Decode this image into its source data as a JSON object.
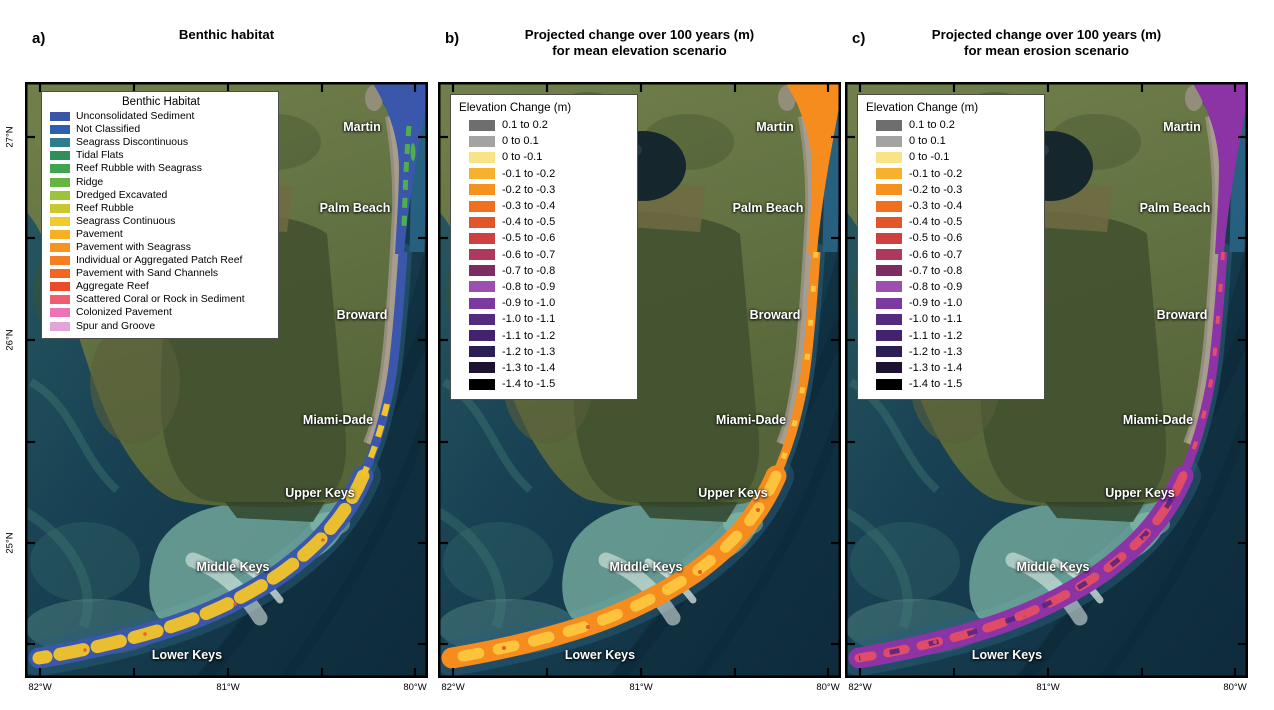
{
  "figure": {
    "description": "Three-panel map figure of South Florida reef tract",
    "panels": [
      {
        "id": "a",
        "letter": "a)",
        "title_line1": "Benthic habitat",
        "title_line2": "",
        "legend": "benthic",
        "strip": {
          "base": "#3b57ab",
          "accent1": "#f2c42a",
          "accent2": "#4fae4e",
          "accent3": "#e8642e"
        }
      },
      {
        "id": "b",
        "letter": "b)",
        "title_line1": "Projected change over 100 years (m)",
        "title_line2": "for mean elevation scenario",
        "legend": "elevation",
        "strip": {
          "base": "#f68c1e",
          "accent1": "#fdc63f",
          "accent2": "#fde29a",
          "accent3": "#e05a2b"
        }
      },
      {
        "id": "c",
        "letter": "c)",
        "title_line1": "Projected change over 100 years (m)",
        "title_line2": "for mean erosion scenario",
        "legend": "elevation",
        "strip": {
          "base": "#8c33a6",
          "accent1": "#e44e63",
          "accent2": "#5a2380",
          "accent3": "#d9455c"
        }
      }
    ]
  },
  "axes": {
    "lon_labels": [
      "82°W",
      "81°W",
      "80°W"
    ],
    "lat_labels": [
      "27°N",
      "26°N",
      "25°N"
    ]
  },
  "regions": [
    "Martin",
    "Palm Beach",
    "Broward",
    "Miami-Dade",
    "Upper Keys",
    "Middle Keys",
    "Lower Keys"
  ],
  "legends": {
    "benthic": {
      "title": "Benthic Habitat",
      "items": [
        {
          "label": "Unconsolidated Sediment",
          "color": "#3b55a6"
        },
        {
          "label": "Not Classified",
          "color": "#2d5fae"
        },
        {
          "label": "Seagrass Discontinuous",
          "color": "#2e7d8c"
        },
        {
          "label": "Tidal Flats",
          "color": "#2f8f5b"
        },
        {
          "label": "Reef Rubble with Seagrass",
          "color": "#3fa34f"
        },
        {
          "label": "Ridge",
          "color": "#67b441"
        },
        {
          "label": "Dredged Excavated",
          "color": "#9cc43a"
        },
        {
          "label": "Reef Rubble",
          "color": "#c9c832"
        },
        {
          "label": "Seagrass Continuous",
          "color": "#f0cb2e"
        },
        {
          "label": "Pavement",
          "color": "#f6b024"
        },
        {
          "label": "Pavement with Seagrass",
          "color": "#f79421"
        },
        {
          "label": "Individual or Aggregated Patch Reef",
          "color": "#f57e20"
        },
        {
          "label": "Pavement with Sand Channels",
          "color": "#f2641f"
        },
        {
          "label": "Aggregate Reef",
          "color": "#ea4b2a"
        },
        {
          "label": "Scattered Coral or Rock in Sediment",
          "color": "#ef5d72"
        },
        {
          "label": "Colonized Pavement",
          "color": "#ee74ba"
        },
        {
          "label": "Spur and Groove",
          "color": "#e3a4d9"
        }
      ]
    },
    "elevation": {
      "title": "Elevation Change (m)",
      "items": [
        {
          "label": "0.1 to 0.2",
          "color": "#6e6e6e"
        },
        {
          "label": "0 to 0.1",
          "color": "#a3a3a3"
        },
        {
          "label": "0 to -0.1",
          "color": "#f7e488"
        },
        {
          "label": "-0.1 to -0.2",
          "color": "#f8b12c"
        },
        {
          "label": "-0.2 to -0.3",
          "color": "#f6901f"
        },
        {
          "label": "-0.3 to -0.4",
          "color": "#f1701f"
        },
        {
          "label": "-0.4 to -0.5",
          "color": "#e2552b"
        },
        {
          "label": "-0.5 to -0.6",
          "color": "#ce4140"
        },
        {
          "label": "-0.6 to -0.7",
          "color": "#ad3a5e"
        },
        {
          "label": "-0.7 to -0.8",
          "color": "#7c2d62"
        },
        {
          "label": "-0.8 to -0.9",
          "color": "#9b4fae"
        },
        {
          "label": "-0.9 to -1.0",
          "color": "#7b3b9e"
        },
        {
          "label": "-1.0 to -1.1",
          "color": "#542a7e"
        },
        {
          "label": "-1.1 to -1.2",
          "color": "#43236f"
        },
        {
          "label": "-1.2 to -1.3",
          "color": "#2d1d55"
        },
        {
          "label": "-1.3 to -1.4",
          "color": "#1f1130"
        },
        {
          "label": "-1.4 to -1.5",
          "color": "#000000"
        }
      ]
    }
  },
  "map_colors": {
    "ocean_deep": "#0e2c3d",
    "ocean_mid": "#174052",
    "ocean_band": "#0b2331",
    "ocean_shelf": "#2f7095",
    "shelf_band": "#2a5e79",
    "gulf": "#2b5c64",
    "gulf_swirl": "#4a8579",
    "bay_shallow": "#8cc7b2",
    "bay_plume": "#e9f4ec",
    "biscayne": "#59a88d",
    "land_base": "#556539",
    "land_light": "#71804b",
    "land_dark": "#3f512e",
    "everglades": "#42512f",
    "cypress": "#5a5f3b",
    "farmland": "#6f6b42",
    "mangrove": "#2f4127",
    "urban": "#97907f",
    "urban_light": "#ab9f8f",
    "lake": "#16262d",
    "lake_light": "#24404b",
    "keys_land": "#9aa06e",
    "frame": "#000000",
    "label_text": "#ffffff"
  }
}
